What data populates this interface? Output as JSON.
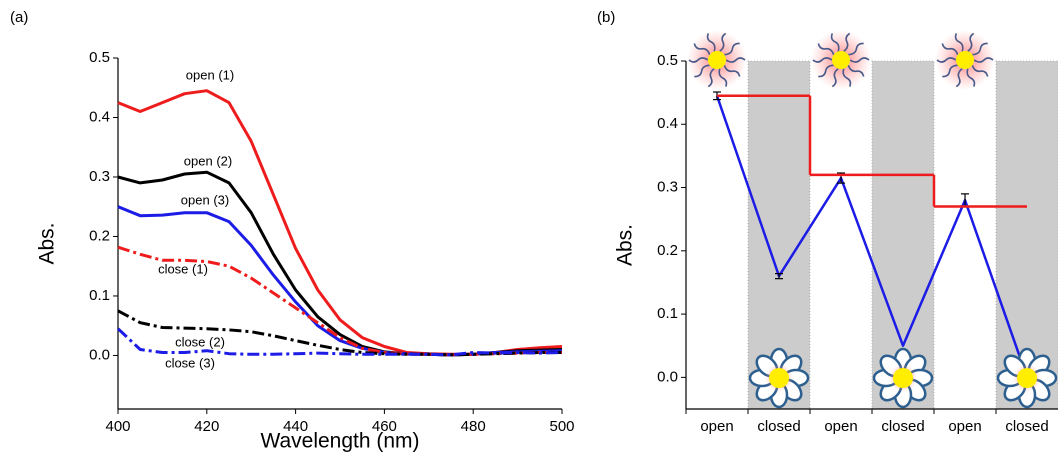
{
  "chart_data": [
    {
      "type": "line",
      "panel_label": "(a)",
      "x_label": "Wavelength (nm)",
      "y_label": "Abs.",
      "x": [
        400,
        405,
        410,
        415,
        420,
        425,
        430,
        435,
        440,
        445,
        450,
        455,
        460,
        465,
        470,
        475,
        480,
        485,
        490,
        495,
        500
      ],
      "xlim": [
        400,
        500
      ],
      "xticks": [
        400,
        420,
        440,
        460,
        480,
        500
      ],
      "ylim": [
        -0.09,
        0.5
      ],
      "yticks": [
        {
          "value": 0,
          "label": "0.0"
        },
        0.1,
        0.2,
        0.3,
        0.4,
        0.5
      ],
      "series": [
        {
          "name": "open (1)",
          "color": "#ee1c1c",
          "dash": "solid",
          "values": [
            0.425,
            0.41,
            0.425,
            0.44,
            0.445,
            0.425,
            0.36,
            0.27,
            0.18,
            0.11,
            0.06,
            0.03,
            0.015,
            0.005,
            0.003,
            0.002,
            0.002,
            0.005,
            0.01,
            0.013,
            0.015
          ]
        },
        {
          "name": "open (2)",
          "color": "#000000",
          "dash": "solid",
          "values": [
            0.3,
            0.29,
            0.295,
            0.305,
            0.308,
            0.29,
            0.24,
            0.17,
            0.11,
            0.065,
            0.035,
            0.015,
            0.006,
            0.003,
            0.002,
            0.001,
            0.002,
            0.005,
            0.008,
            0.009,
            0.01
          ]
        },
        {
          "name": "open (3)",
          "color": "#1c1ce6",
          "dash": "solid",
          "values": [
            0.25,
            0.235,
            0.236,
            0.24,
            0.24,
            0.225,
            0.185,
            0.135,
            0.09,
            0.05,
            0.025,
            0.012,
            0.005,
            0.003,
            0.002,
            0.001,
            0.002,
            0.005,
            0.006,
            0.007,
            0.008
          ]
        },
        {
          "name": "close (1)",
          "color": "#ee1c1c",
          "dash": "dashdot",
          "values": [
            0.182,
            0.17,
            0.16,
            0.16,
            0.158,
            0.15,
            0.13,
            0.105,
            0.08,
            0.055,
            0.03,
            0.012,
            0.005,
            0.003,
            0.002,
            0.001,
            0.002,
            0.003,
            0.004,
            0.005,
            0.005
          ]
        },
        {
          "name": "close (2)",
          "color": "#000000",
          "dash": "dashdot",
          "values": [
            0.075,
            0.055,
            0.047,
            0.046,
            0.045,
            0.043,
            0.04,
            0.033,
            0.025,
            0.017,
            0.01,
            0.005,
            0.003,
            0.002,
            0.002,
            0.001,
            0.002,
            0.003,
            0.004,
            0.005,
            0.005
          ]
        },
        {
          "name": "close (3)",
          "color": "#1c1ce6",
          "dash": "dashdot",
          "values": [
            0.045,
            0.01,
            0.005,
            0.005,
            0.008,
            0.003,
            0.002,
            0.002,
            0.003,
            0.004,
            0.003,
            0.002,
            0.002,
            0.002,
            0.002,
            0.001,
            0.005,
            0.004,
            0.005,
            0.004,
            0.005
          ]
        }
      ]
    },
    {
      "type": "line",
      "panel_label": "(b)",
      "y_label": "Abs.",
      "categories": [
        "open",
        "closed",
        "open",
        "closed",
        "open",
        "closed"
      ],
      "ylim": [
        -0.05,
        0.5
      ],
      "yticks": [
        {
          "value": 0,
          "label": "0.0"
        },
        0.1,
        0.2,
        0.3,
        0.4,
        0.5
      ],
      "series": [
        {
          "color": "#1c1ce6",
          "values": [
            0.445,
            0.16,
            0.315,
            0.05,
            0.28,
            0.0
          ],
          "errors": [
            0.006,
            0.004,
            0.008,
            null,
            0.01,
            null
          ]
        },
        {
          "color": "#ee1c1c",
          "step": true,
          "values": [
            0.445,
            0.445,
            0.32,
            0.32,
            0.27,
            0.27
          ]
        }
      ]
    }
  ]
}
